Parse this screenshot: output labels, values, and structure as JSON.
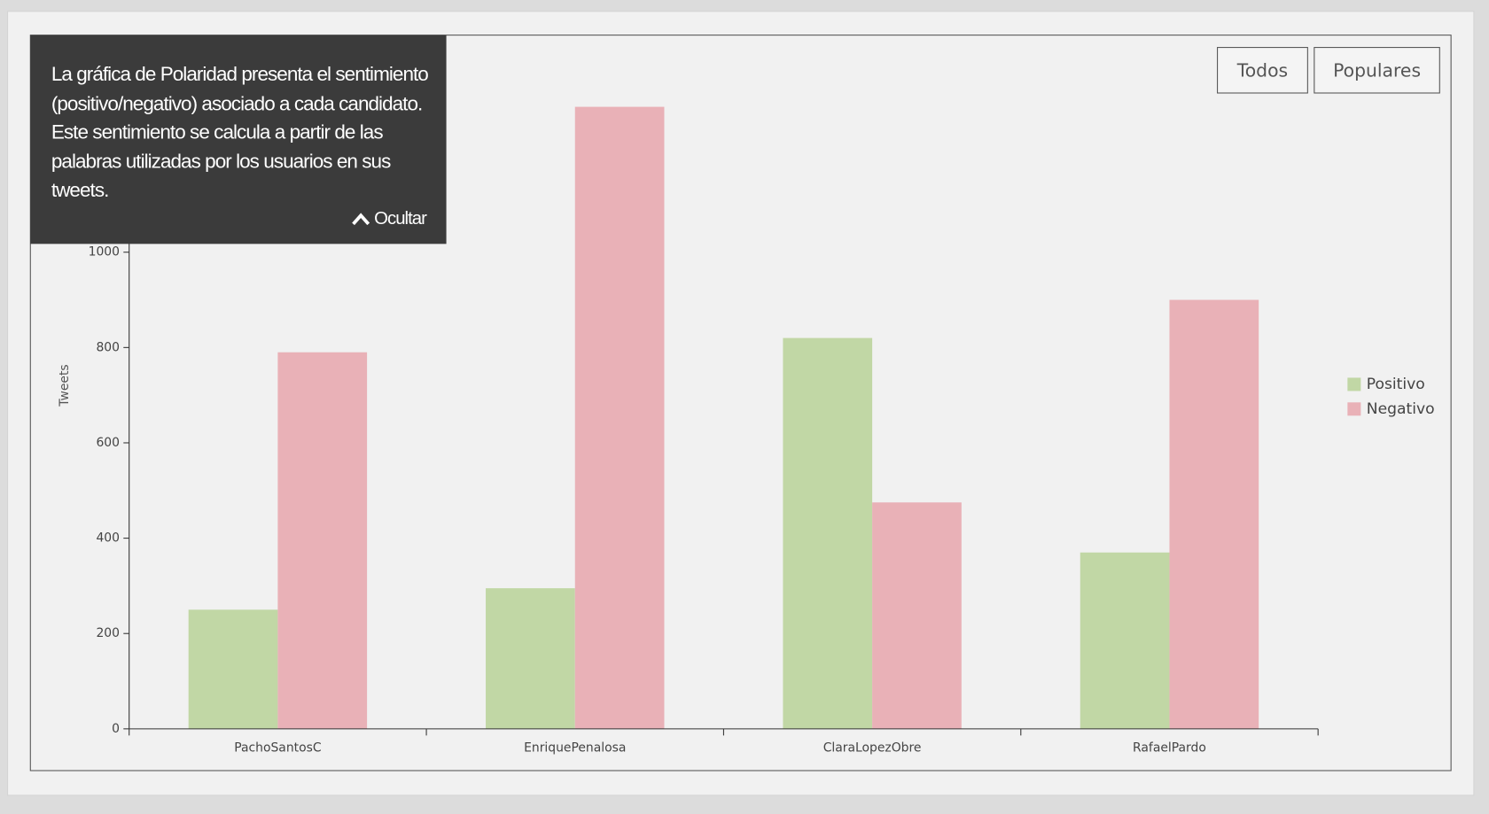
{
  "chart_data": {
    "type": "bar",
    "y_label": "Tweets",
    "categories": [
      "PachoSantosC",
      "EnriquePenalosa",
      "ClaraLopezObre",
      "RafaelPardo"
    ],
    "series": [
      {
        "name": "Positivo",
        "color": "#c1d7a5",
        "values": [
          250,
          295,
          820,
          370
        ]
      },
      {
        "name": "Negativo",
        "color": "#e9b1b7",
        "values": [
          790,
          1305,
          475,
          900
        ]
      }
    ],
    "ylim": [
      0,
      1330
    ],
    "yticks": [
      0,
      200,
      400,
      600,
      800,
      1000
    ],
    "legend": "right"
  },
  "tooltip": {
    "text": "La gráfica de Polaridad presenta el sentimiento (positivo/negativo) asociado a cada candidato. Este sentimiento se calcula a partir de las palabras utilizadas por los usuarios en sus tweets.",
    "hide": "Ocultar"
  },
  "buttons": [
    "Todos",
    "Populares"
  ]
}
